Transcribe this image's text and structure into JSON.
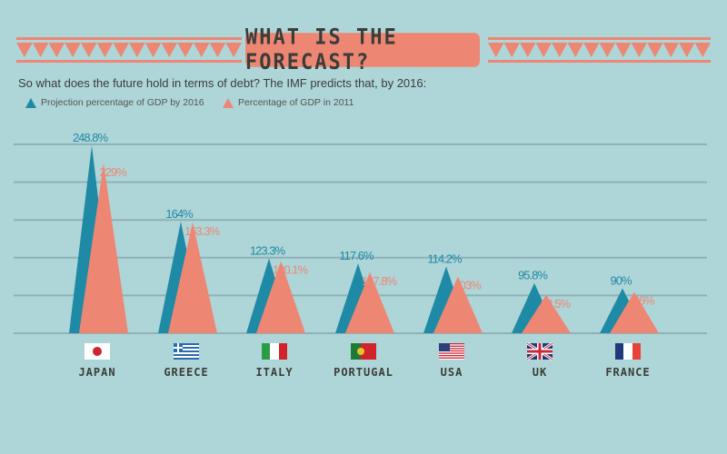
{
  "header": {
    "title": "WHAT IS THE FORECAST?"
  },
  "subtitle": "So what does the future hold in terms of debt? The IMF predicts that, by 2016:",
  "colors": {
    "background": "#aed5d7",
    "projection": "#1f8aa5",
    "current": "#ee8674",
    "grid": "#8fb2b8",
    "text": "#3b3d38"
  },
  "chart_data": {
    "type": "area",
    "title": "",
    "categories": [
      "JAPAN",
      "GREECE",
      "ITALY",
      "PORTUGAL",
      "USA",
      "UK",
      "FRANCE"
    ],
    "flags": [
      "japan-flag-icon",
      "greece-flag-icon",
      "italy-flag-icon",
      "portugal-flag-icon",
      "usa-flag-icon",
      "uk-flag-icon",
      "france-flag-icon"
    ],
    "series": [
      {
        "name": "Projection percentage of GDP by 2016",
        "values": [
          248.8,
          164,
          123.3,
          117.6,
          114.2,
          95.8,
          90
        ],
        "labels": [
          "248.8%",
          "164%",
          "123.3%",
          "117.6%",
          "114.2%",
          "95.8%",
          "90%"
        ]
      },
      {
        "name": "Percentage of GDP in 2011",
        "values": [
          229,
          163.3,
          120.1,
          107.8,
          103,
          82.5,
          86
        ],
        "labels": [
          "229%",
          "163.3%",
          "120.1%",
          "107.8%",
          "103%",
          "82.5%",
          "86%"
        ]
      }
    ],
    "grid": true,
    "legend": "top-left"
  }
}
